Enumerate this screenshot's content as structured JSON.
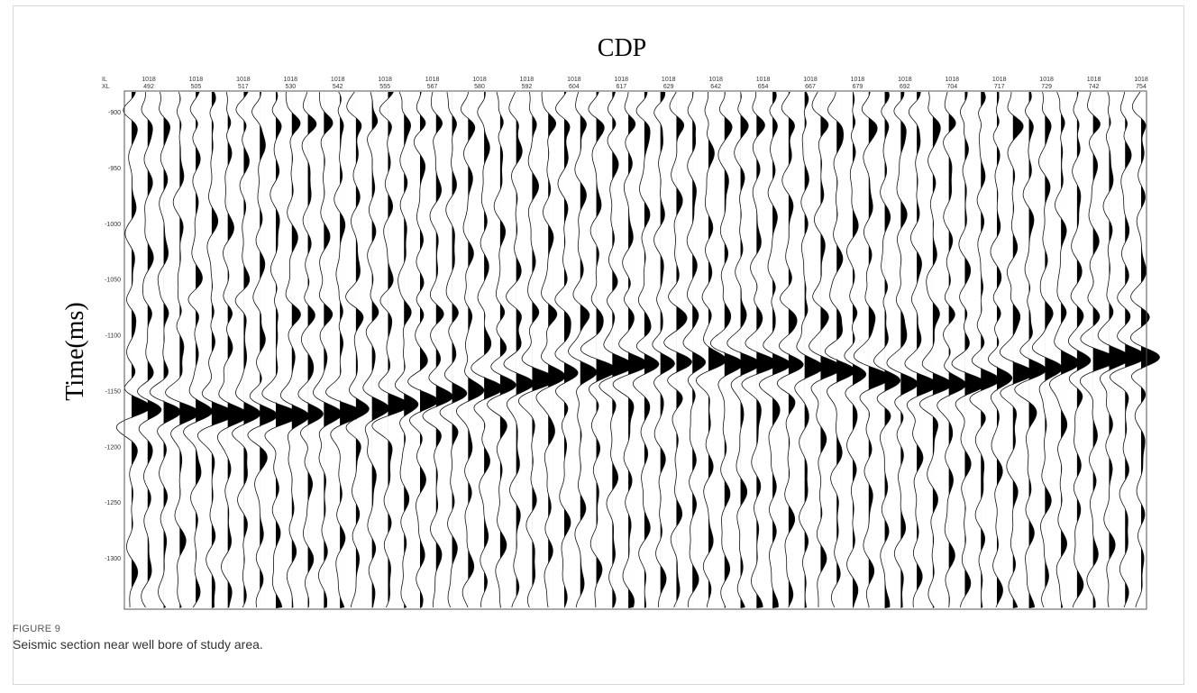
{
  "figure": {
    "title": "CDP",
    "y_label": "Time(ms)",
    "row_labels": [
      "IL",
      "XL"
    ],
    "il_labels": [
      "1018",
      "1018",
      "1018",
      "1018",
      "1018",
      "1018",
      "1018",
      "1018",
      "1018",
      "1018",
      "1018",
      "1018",
      "1018",
      "1018",
      "1018",
      "1018",
      "1018",
      "1018",
      "1018",
      "1018",
      "1018",
      "1018"
    ],
    "xl_labels": [
      "492",
      "505",
      "517",
      "530",
      "542",
      "555",
      "567",
      "580",
      "592",
      "604",
      "617",
      "629",
      "642",
      "654",
      "667",
      "679",
      "692",
      "704",
      "717",
      "729",
      "742",
      "754"
    ],
    "time_labels": [
      "-900",
      "-950",
      "-1000",
      "-1050",
      "-1100",
      "-1150",
      "-1200",
      "-1250",
      "-1300"
    ]
  },
  "caption": {
    "label": "FIGURE 9",
    "text": "Seismic section near well bore of study area."
  }
}
